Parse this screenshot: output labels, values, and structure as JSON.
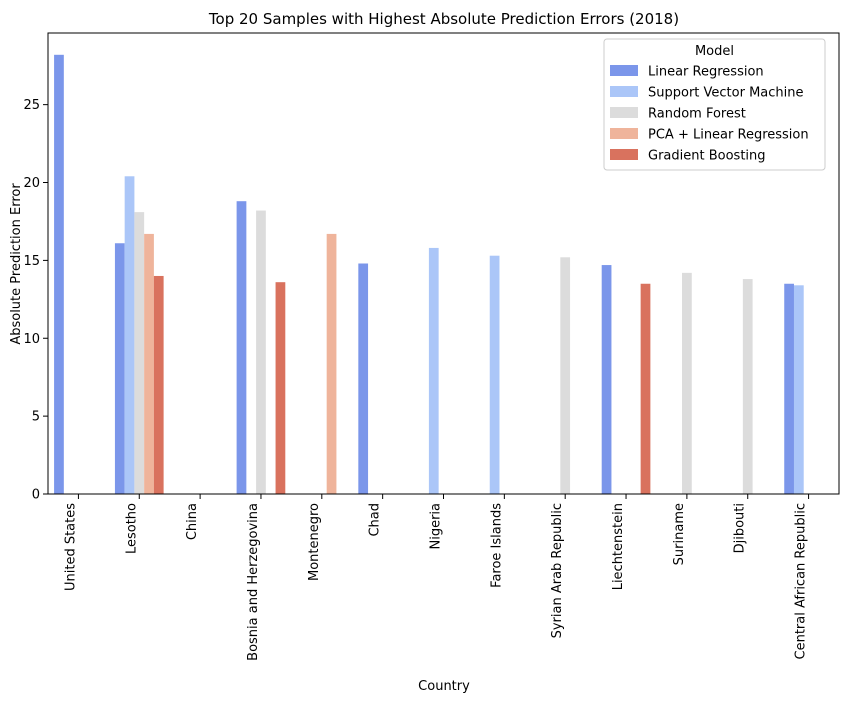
{
  "chart_data": {
    "type": "bar",
    "title": "Top 20 Samples with Highest Absolute Prediction Errors (2018)",
    "xlabel": "Country",
    "ylabel": "Absolute Prediction Error",
    "ylim": [
      0,
      29.6
    ],
    "yticks": [
      0,
      5,
      10,
      15,
      20,
      25
    ],
    "grid": false,
    "legend": {
      "title": "Model",
      "placement": "top-right"
    },
    "categories": [
      "United States",
      "Lesotho",
      "China",
      "Bosnia and Herzegovina",
      "Montenegro",
      "Chad",
      "Nigeria",
      "Faroe Islands",
      "Syrian Arab Republic",
      "Liechtenstein",
      "Suriname",
      "Djibouti",
      "Central African Republic"
    ],
    "series": [
      {
        "name": "Linear Regression",
        "color": "#7b96ea",
        "values": [
          28.2,
          16.1,
          null,
          18.8,
          null,
          14.8,
          null,
          null,
          null,
          14.7,
          null,
          null,
          13.5
        ]
      },
      {
        "name": "Support Vector Machine",
        "color": "#abc6f8",
        "values": [
          null,
          20.4,
          null,
          null,
          null,
          null,
          15.8,
          15.3,
          null,
          null,
          null,
          null,
          13.4
        ]
      },
      {
        "name": "Random Forest",
        "color": "#dcdcdc",
        "values": [
          null,
          18.1,
          null,
          18.2,
          null,
          null,
          null,
          null,
          15.2,
          null,
          14.2,
          13.8,
          null
        ]
      },
      {
        "name": "PCA + Linear Regression",
        "color": "#efb49b",
        "values": [
          null,
          16.7,
          null,
          null,
          16.7,
          null,
          null,
          null,
          null,
          null,
          null,
          null,
          null
        ]
      },
      {
        "name": "Gradient Boosting",
        "color": "#d9725e",
        "values": [
          null,
          14.0,
          null,
          13.6,
          null,
          null,
          null,
          null,
          null,
          13.5,
          null,
          null,
          null
        ]
      }
    ]
  }
}
